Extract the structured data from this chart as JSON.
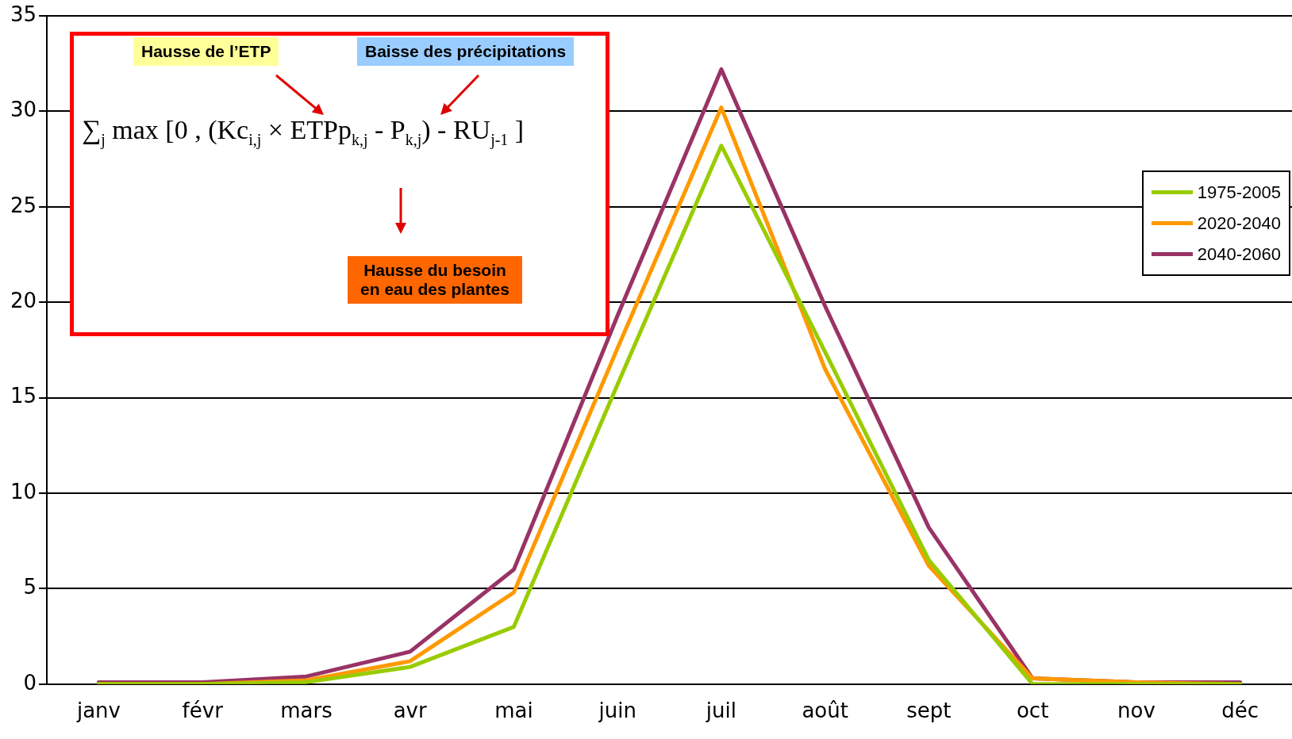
{
  "chart_data": {
    "type": "line",
    "categories": [
      "janv",
      "févr",
      "mars",
      "avr",
      "mai",
      "juin",
      "juil",
      "août",
      "sept",
      "oct",
      "nov",
      "déc"
    ],
    "series": [
      {
        "name": "1975-2005",
        "color": "#99cc00",
        "values": [
          0,
          0,
          0.1,
          0.9,
          3.0,
          15.7,
          28.2,
          17.4,
          6.5,
          0,
          0,
          0
        ]
      },
      {
        "name": "2020-2040",
        "color": "#ff9900",
        "values": [
          0,
          0,
          0.2,
          1.2,
          4.8,
          17.6,
          30.2,
          16.5,
          6.2,
          0.3,
          0.1,
          0
        ]
      },
      {
        "name": "2040-2060",
        "color": "#993366",
        "values": [
          0.1,
          0.1,
          0.4,
          1.7,
          6.0,
          19.3,
          32.2,
          19.8,
          8.2,
          0.3,
          0.1,
          0.1
        ]
      }
    ],
    "ylim": [
      0,
      35
    ],
    "yticks": [
      0,
      5,
      10,
      15,
      20,
      25,
      30,
      35
    ],
    "grid": "y",
    "legend": "right",
    "marker": "none",
    "line_style": "solid",
    "annotations": [
      "Hausse de l’ETP",
      "Baisse des précipitations",
      "∑$_{j}$ max [0 , (Kc$_{i,j}$ × ETPp$_{k,j}$ - P$_{k,j}$) - RU$_{j-1}$ ]",
      "Hausse du besoin en eau des plantes"
    ]
  }
}
